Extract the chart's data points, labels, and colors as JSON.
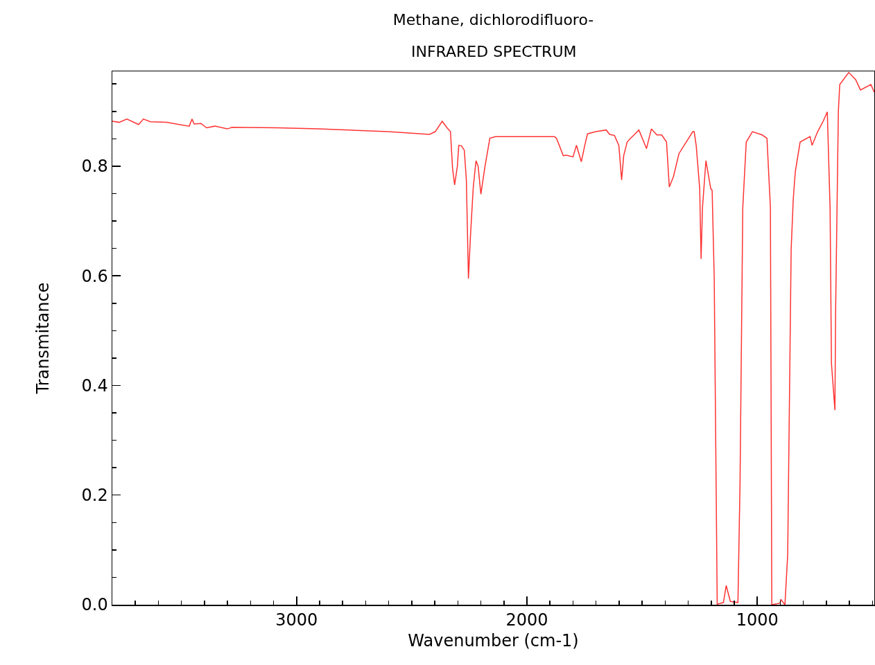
{
  "chart_data": {
    "type": "line",
    "title": "Methane, dichlorodifluoro-",
    "subtitle": "INFRARED SPECTRUM",
    "xlabel": "Wavenumber (cm-1)",
    "ylabel": "Transmitance",
    "x": [
      3800,
      3770,
      3737,
      3686,
      3665,
      3635,
      3565,
      3466,
      3454,
      3445,
      3415,
      3391,
      3355,
      3301,
      3280,
      3084,
      2904,
      2603,
      2423,
      2398,
      2368,
      2347,
      2332,
      2323,
      2314,
      2302,
      2296,
      2284,
      2272,
      2263,
      2254,
      2245,
      2233,
      2221,
      2212,
      2200,
      2182,
      2161,
      2137,
      1881,
      1872,
      1842,
      1830,
      1800,
      1785,
      1764,
      1749,
      1737,
      1701,
      1656,
      1641,
      1620,
      1601,
      1589,
      1580,
      1565,
      1550,
      1535,
      1514,
      1481,
      1460,
      1436,
      1415,
      1394,
      1382,
      1364,
      1340,
      1280,
      1274,
      1265,
      1250,
      1244,
      1238,
      1223,
      1202,
      1196,
      1187,
      1174,
      1147,
      1135,
      1117,
      1084,
      1075,
      1063,
      1048,
      1021,
      979,
      958,
      943,
      937,
      901,
      898,
      880,
      868,
      853,
      844,
      835,
      814,
      771,
      762,
      738,
      714,
      696,
      684,
      678,
      663,
      660,
      648,
      642,
      603,
      573,
      552,
      507,
      492
    ],
    "series": [
      {
        "color": "#ff3333",
        "values": [
          0.882,
          0.88,
          0.886,
          0.876,
          0.886,
          0.881,
          0.88,
          0.873,
          0.886,
          0.877,
          0.878,
          0.87,
          0.873,
          0.868,
          0.871,
          0.87,
          0.868,
          0.863,
          0.858,
          0.863,
          0.882,
          0.87,
          0.863,
          0.796,
          0.766,
          0.8,
          0.838,
          0.837,
          0.829,
          0.775,
          0.595,
          0.674,
          0.762,
          0.81,
          0.8,
          0.749,
          0.8,
          0.851,
          0.854,
          0.854,
          0.851,
          0.819,
          0.82,
          0.817,
          0.838,
          0.808,
          0.838,
          0.859,
          0.863,
          0.866,
          0.858,
          0.856,
          0.838,
          0.775,
          0.819,
          0.844,
          0.851,
          0.857,
          0.866,
          0.832,
          0.868,
          0.857,
          0.857,
          0.844,
          0.762,
          0.781,
          0.823,
          0.863,
          0.863,
          0.837,
          0.759,
          0.631,
          0.724,
          0.81,
          0.759,
          0.756,
          0.598,
          0.001,
          0.004,
          0.035,
          0.006,
          0.004,
          0.219,
          0.724,
          0.844,
          0.863,
          0.857,
          0.851,
          0.724,
          0.0,
          0.003,
          0.01,
          0.0,
          0.092,
          0.648,
          0.739,
          0.79,
          0.844,
          0.854,
          0.838,
          0.863,
          0.882,
          0.899,
          0.724,
          0.44,
          0.355,
          0.535,
          0.901,
          0.949,
          0.971,
          0.958,
          0.939,
          0.949,
          0.935
        ]
      }
    ],
    "xlim": [
      3800,
      492
    ],
    "xticks": [
      {
        "value": 3700,
        "label": null
      },
      {
        "value": 3600,
        "label": null
      },
      {
        "value": 3500,
        "label": null
      },
      {
        "value": 3400,
        "label": null
      },
      {
        "value": 3300,
        "label": null
      },
      {
        "value": 3200,
        "label": null
      },
      {
        "value": 3100,
        "label": null
      },
      3000,
      {
        "value": 2900,
        "label": null
      },
      {
        "value": 2800,
        "label": null
      },
      {
        "value": 2700,
        "label": null
      },
      {
        "value": 2600,
        "label": null
      },
      {
        "value": 2500,
        "label": null
      },
      {
        "value": 2400,
        "label": null
      },
      {
        "value": 2300,
        "label": null
      },
      {
        "value": 2200,
        "label": null
      },
      {
        "value": 2100,
        "label": null
      },
      2000,
      {
        "value": 1900,
        "label": null
      },
      {
        "value": 1800,
        "label": null
      },
      {
        "value": 1700,
        "label": null
      },
      {
        "value": 1600,
        "label": null
      },
      {
        "value": 1500,
        "label": null
      },
      {
        "value": 1400,
        "label": null
      },
      {
        "value": 1300,
        "label": null
      },
      {
        "value": 1200,
        "label": null
      },
      {
        "value": 1100,
        "label": null
      },
      1000,
      {
        "value": 900,
        "label": null
      },
      {
        "value": 800,
        "label": null
      },
      {
        "value": 700,
        "label": null
      },
      {
        "value": 600,
        "label": null
      },
      {
        "value": 500,
        "label": null
      }
    ],
    "ylim": [
      0,
      0.973
    ],
    "yticks": [
      {
        "value": 0,
        "label": "0.0"
      },
      {
        "value": 0.05,
        "label": null
      },
      {
        "value": 0.1,
        "label": null
      },
      {
        "value": 0.15,
        "label": null
      },
      0.2,
      {
        "value": 0.25,
        "label": null
      },
      {
        "value": 0.3,
        "label": null
      },
      {
        "value": 0.35,
        "label": null
      },
      0.4,
      {
        "value": 0.45,
        "label": null
      },
      {
        "value": 0.5,
        "label": null
      },
      {
        "value": 0.55,
        "label": null
      },
      0.6,
      {
        "value": 0.65,
        "label": null
      },
      {
        "value": 0.7,
        "label": null
      },
      {
        "value": 0.75,
        "label": null
      },
      0.8,
      {
        "value": 0.85,
        "label": null
      },
      {
        "value": 0.9,
        "label": null
      },
      {
        "value": 0.95,
        "label": null
      }
    ],
    "grid": false,
    "marker": "none",
    "line_style": "solid"
  }
}
